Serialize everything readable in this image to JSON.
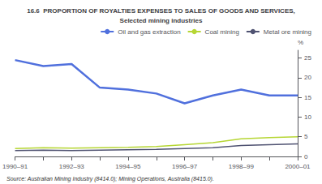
{
  "chart_data": {
    "type": "line",
    "title": "16.6  PROPORTION OF ROYALTIES EXPENSES TO SALES OF GOODS AND SERVICES,",
    "subtitle": "Selected mining industries",
    "source": "Source: Australian Mining Industry (8414.0); Mining Operations, Australia (8415.0).",
    "ylabel": "%",
    "categories": [
      "1990–91",
      null,
      "1992–93",
      null,
      "1994–95",
      null,
      "1996–97",
      null,
      "1998–99",
      null,
      "2000–01"
    ],
    "series": [
      {
        "name": "Oil and gas extraction",
        "values": [
          24.5,
          23.0,
          23.5,
          17.5,
          17.0,
          16.0,
          13.5,
          15.5,
          17.0,
          15.5,
          15.5
        ]
      },
      {
        "name": "Coal mining",
        "values": [
          2.0,
          2.2,
          2.1,
          2.2,
          2.3,
          2.5,
          3.0,
          3.5,
          4.5,
          4.8,
          5.0
        ]
      },
      {
        "name": "Metal ore mining",
        "values": [
          1.5,
          1.6,
          1.5,
          1.6,
          1.7,
          1.8,
          2.0,
          2.2,
          2.8,
          3.0,
          3.2
        ]
      }
    ],
    "ylim": [
      0,
      27
    ],
    "yticks": [
      0,
      5,
      10,
      15,
      20,
      25
    ],
    "grid": false,
    "legend": "upper right"
  }
}
